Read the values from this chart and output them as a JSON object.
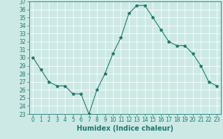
{
  "x": [
    0,
    1,
    2,
    3,
    4,
    5,
    6,
    7,
    8,
    9,
    10,
    11,
    12,
    13,
    14,
    15,
    16,
    17,
    18,
    19,
    20,
    21,
    22,
    23
  ],
  "y": [
    30,
    28.5,
    27,
    26.5,
    26.5,
    25.5,
    25.5,
    23,
    26,
    28,
    30.5,
    32.5,
    35.5,
    36.5,
    36.5,
    35,
    33.5,
    32,
    31.5,
    31.5,
    30.5,
    29,
    27,
    26.5
  ],
  "line_color": "#1a7a6e",
  "marker": "*",
  "marker_size": 3,
  "bg_color": "#cce9e5",
  "grid_color": "#ffffff",
  "xlabel": "Humidex (Indice chaleur)",
  "ylim": [
    23,
    37
  ],
  "xlim": [
    -0.5,
    23.5
  ],
  "yticks": [
    23,
    24,
    25,
    26,
    27,
    28,
    29,
    30,
    31,
    32,
    33,
    34,
    35,
    36,
    37
  ],
  "xticks": [
    0,
    1,
    2,
    3,
    4,
    5,
    6,
    7,
    8,
    9,
    10,
    11,
    12,
    13,
    14,
    15,
    16,
    17,
    18,
    19,
    20,
    21,
    22,
    23
  ],
  "tick_font_size": 5.5,
  "label_font_size": 7
}
